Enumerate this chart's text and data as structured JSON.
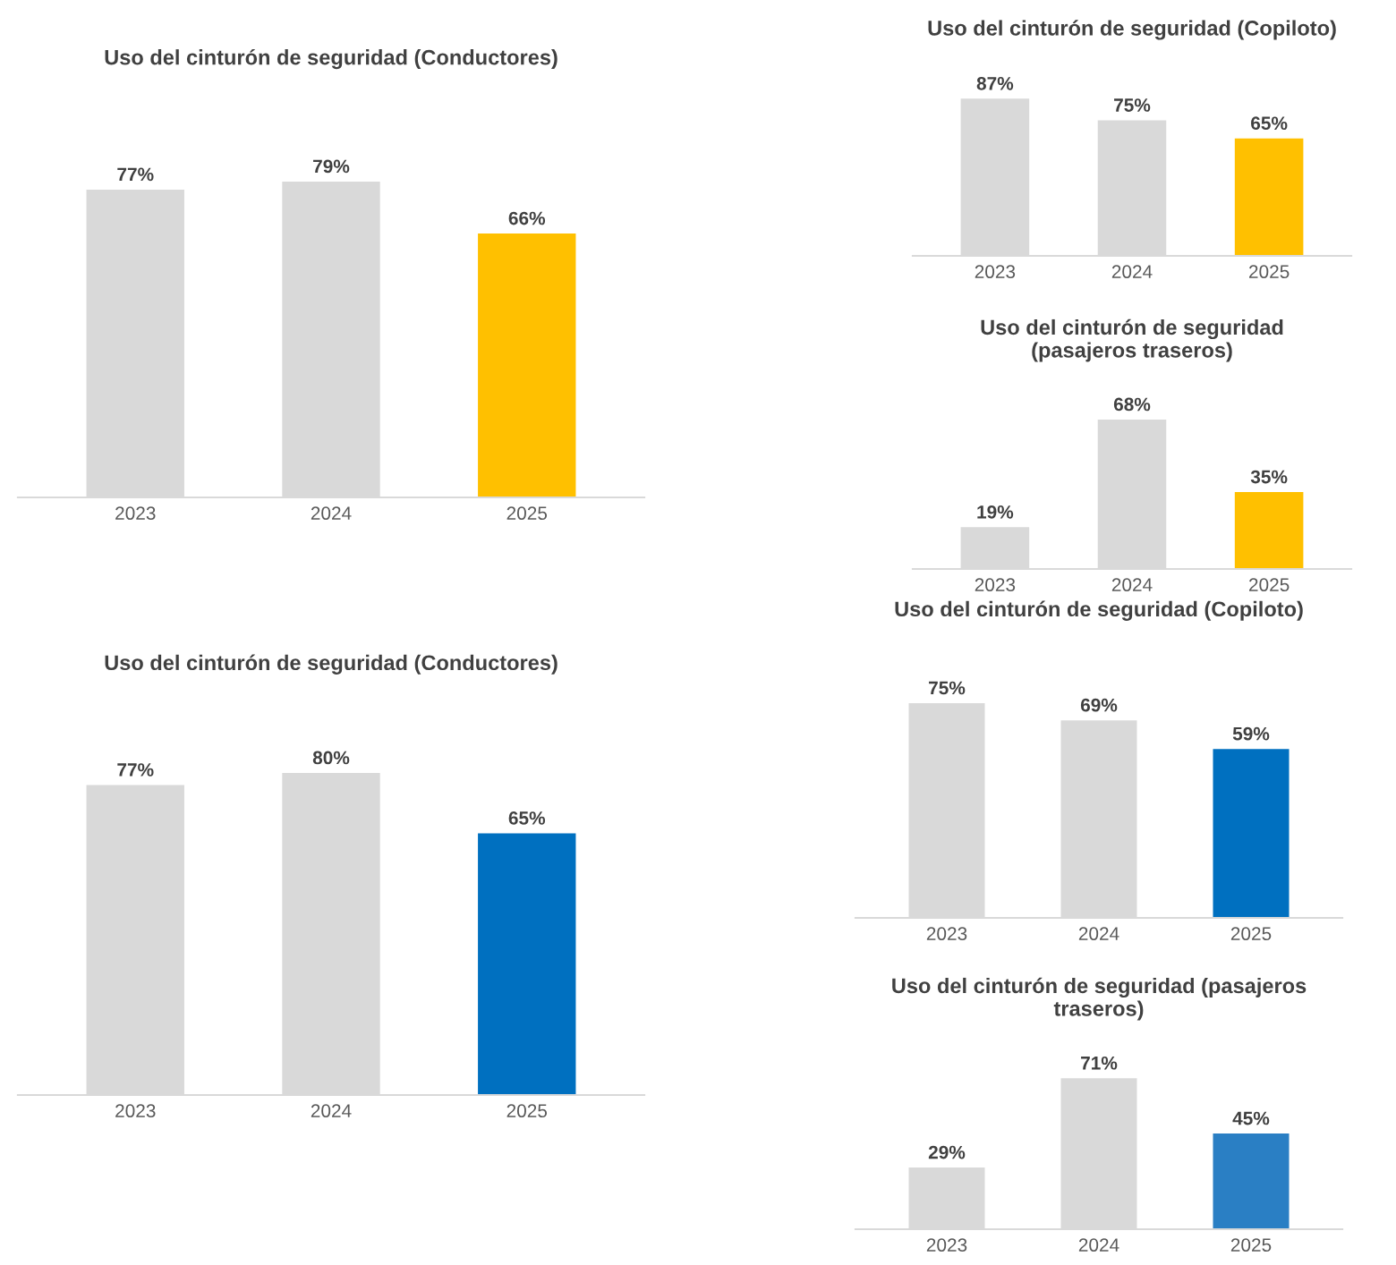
{
  "chart_data": [
    {
      "type": "bar",
      "title": "Uso del cinturón de seguridad (Conductores)",
      "categories": [
        "2023",
        "2024",
        "2025"
      ],
      "values": [
        77,
        79,
        66
      ],
      "value_labels": [
        "77%",
        "79%",
        "66%"
      ],
      "colors": [
        "#d9d9d9",
        "#d9d9d9",
        "#ffc000"
      ]
    },
    {
      "type": "bar",
      "title": "Uso del cinturón de seguridad (Copiloto)",
      "categories": [
        "2023",
        "2024",
        "2025"
      ],
      "values": [
        87,
        75,
        65
      ],
      "value_labels": [
        "87%",
        "75%",
        "65%"
      ],
      "colors": [
        "#d9d9d9",
        "#d9d9d9",
        "#ffc000"
      ]
    },
    {
      "type": "bar",
      "title": "Uso del cinturón de seguridad\n(pasajeros traseros)",
      "categories": [
        "2023",
        "2024",
        "2025"
      ],
      "values": [
        19,
        68,
        35
      ],
      "value_labels": [
        "19%",
        "68%",
        "35%"
      ],
      "colors": [
        "#d9d9d9",
        "#d9d9d9",
        "#ffc000"
      ]
    },
    {
      "type": "bar",
      "title": "Uso del cinturón de seguridad (Conductores)",
      "categories": [
        "2023",
        "2024",
        "2025"
      ],
      "values": [
        77,
        80,
        65
      ],
      "value_labels": [
        "77%",
        "80%",
        "65%"
      ],
      "colors": [
        "#d9d9d9",
        "#d9d9d9",
        "#0070c0"
      ]
    },
    {
      "type": "bar",
      "title": "Uso del cinturón de seguridad (Copiloto)",
      "categories": [
        "2023",
        "2024",
        "2025"
      ],
      "values": [
        75,
        69,
        59
      ],
      "value_labels": [
        "75%",
        "69%",
        "59%"
      ],
      "colors": [
        "#d9d9d9",
        "#d9d9d9",
        "#0070c0"
      ]
    },
    {
      "type": "bar",
      "title": "Uso del cinturón de seguridad (pasajeros\ntraseros)",
      "categories": [
        "2023",
        "2024",
        "2025"
      ],
      "values": [
        29,
        71,
        45
      ],
      "value_labels": [
        "29%",
        "71%",
        "45%"
      ],
      "colors": [
        "#d9d9d9",
        "#d9d9d9",
        "#2a7fc4"
      ]
    }
  ]
}
